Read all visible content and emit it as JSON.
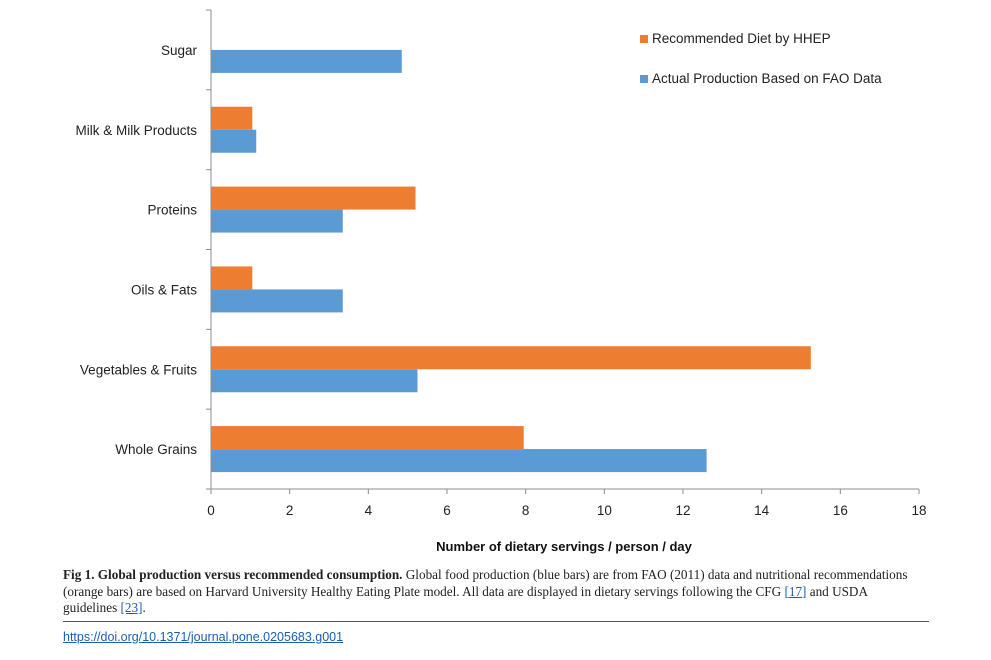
{
  "chart_data": {
    "type": "bar",
    "orientation": "horizontal",
    "categories": [
      "Sugar",
      "Milk & Milk Products",
      "Proteins",
      "Oils & Fats",
      "Vegetables & Fruits",
      "Whole Grains"
    ],
    "series": [
      {
        "name": "Recommended Diet by HHEP",
        "color": "#ED7D31",
        "values": [
          null,
          1.05,
          5.2,
          1.05,
          15.25,
          7.95
        ]
      },
      {
        "name": "Actual Production Based on FAO Data",
        "color": "#5B9BD5",
        "values": [
          4.85,
          1.15,
          3.35,
          3.35,
          5.25,
          12.6
        ]
      }
    ],
    "xlabel": "Number of dietary servings / person / day",
    "ylabel": "",
    "xlim": [
      0,
      18
    ],
    "xticks": [
      0,
      2,
      4,
      6,
      8,
      10,
      12,
      14,
      16,
      18
    ],
    "grid": false,
    "legend_position": "top-right"
  },
  "caption": {
    "title": "Fig 1. Global production versus recommended consumption.",
    "text_1": " Global food production (blue bars) are from FAO (2011) data and nutritional recommendations (orange bars) are based on Harvard University Healthy Eating Plate model. All data are displayed in dietary servings following the CFG ",
    "ref_1": "[17]",
    "text_2": " and USDA guidelines ",
    "ref_2": "[23]",
    "text_3": "."
  },
  "doi_link": "https://doi.org/10.1371/journal.pone.0205683.g001"
}
